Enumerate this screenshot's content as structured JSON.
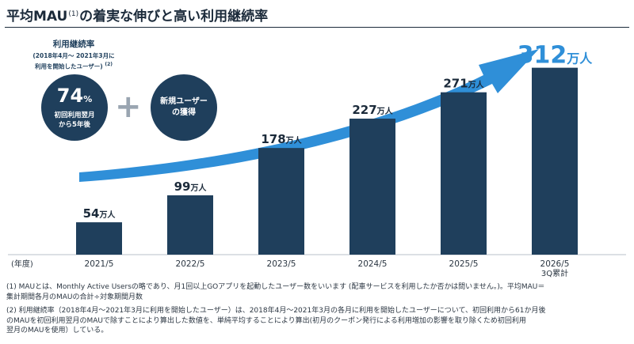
{
  "header": {
    "title_a": "平均MAU",
    "title_note": "(1)",
    "title_b": "の着実な伸びと高い利用継続率"
  },
  "retention": {
    "heading": "利用継続率",
    "period_line1": "(2018年4月～ 2021年3月に",
    "period_line2": "利用を開始したユーザー)",
    "period_note": "(2)",
    "value": "74",
    "value_unit": "%",
    "desc_line1": "初回利用翌月",
    "desc_line2": "から5年後",
    "plus": "+",
    "new_users_line1": "新規ユーザー",
    "new_users_line2": "の獲得"
  },
  "chart_data": {
    "type": "bar",
    "axis_prefix": "(年度)",
    "categories": [
      "2021/5",
      "2022/5",
      "2023/5",
      "2024/5",
      "2025/5",
      "2026/5"
    ],
    "category_sub": [
      "",
      "",
      "",
      "",
      "",
      "3Q累計"
    ],
    "values": [
      54,
      99,
      178,
      227,
      271,
      312
    ],
    "unit": "万人",
    "ylim": [
      0,
      330
    ],
    "bar_color": "#1f3f5c",
    "arrow_color": "#2f8fd8",
    "highlight_color": "#2f8fd8"
  },
  "footnotes": {
    "fn1_line1": "(1) MAUとは、Monthly Active Usersの略であり、月1回以上GOアプリを起動したユーザー数をいいます (配車サービスを利用したか否かは問いません。)。平均MAU＝",
    "fn1_line2": "集計期間各月のMAUの合計÷対象期間月数",
    "fn2_line1": "(2) 利用継続率（2018年4月～2021年3月に利用を開始したユーザー）は、2018年4月～2021年3月の各月に利用を開始したユーザーについて、初回利用から61か月後",
    "fn2_line2": "のMAUを初回利用翌月のMAUで除すことにより算出した数値を、単純平均することにより算出(初月のクーポン発行による利用増加の影響を取り除くため初回利用",
    "fn2_line3": "翌月のMAUを使用）している。"
  }
}
